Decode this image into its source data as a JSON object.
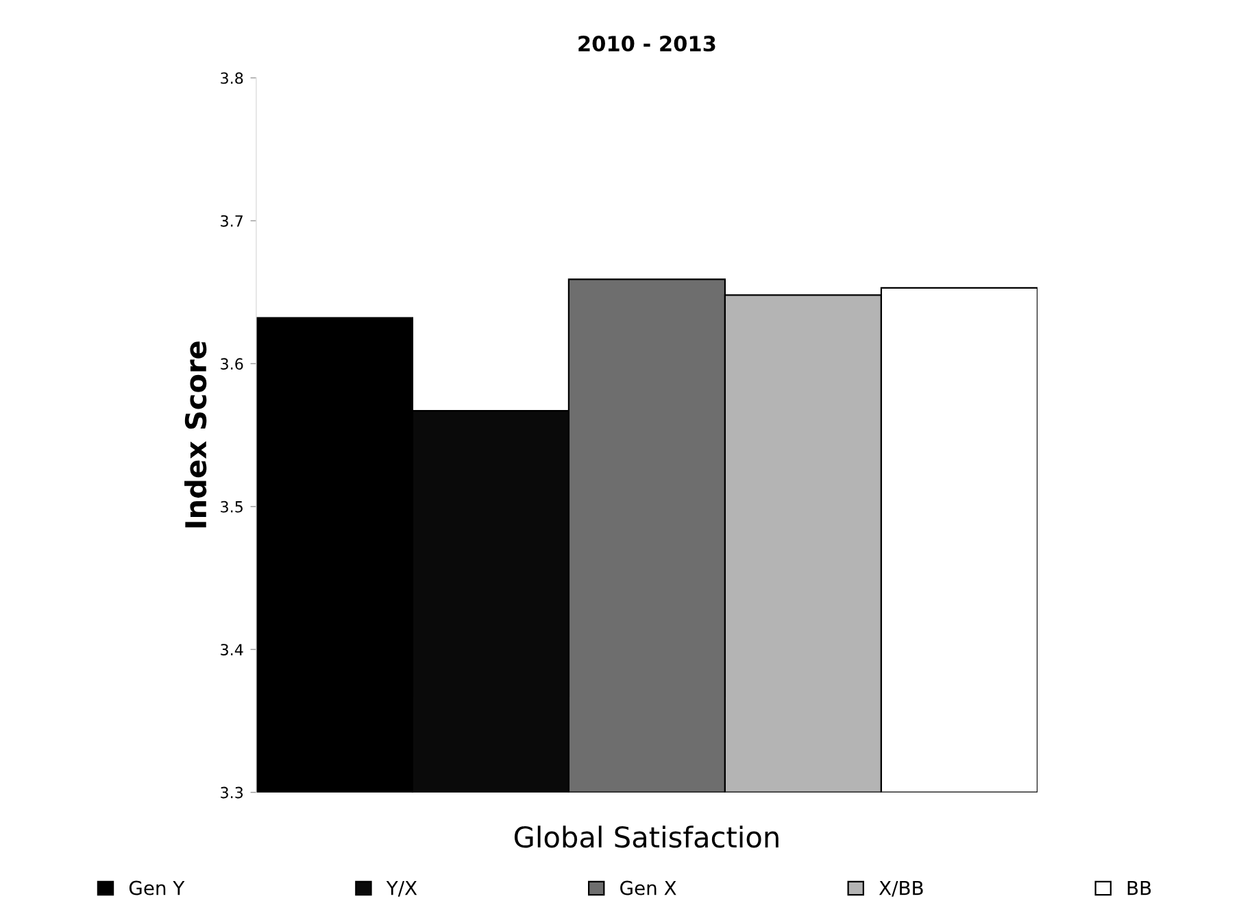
{
  "chart_data": {
    "type": "bar",
    "title": "2010 - 2013",
    "ylabel": "Index Score",
    "xlabel": "Global Satisfaction",
    "categories": [
      null
    ],
    "series": [
      {
        "name": "Gen Y",
        "color": "#000000",
        "values": [
          3.632
        ]
      },
      {
        "name": "Y/X",
        "color": "#0a0a0a",
        "values": [
          3.567
        ]
      },
      {
        "name": "Gen X",
        "color": "#6e6e6e",
        "values": [
          3.659
        ]
      },
      {
        "name": "X/BB",
        "color": "#b4b4b4",
        "values": [
          3.648
        ]
      },
      {
        "name": "BB",
        "color": "#ffffff",
        "values": [
          3.653
        ]
      }
    ],
    "ylim": [
      3.3,
      3.8
    ],
    "yticks": [
      3.3,
      3.4,
      3.5,
      3.6,
      3.7,
      3.8
    ],
    "grid": false,
    "legend": "bottom"
  }
}
